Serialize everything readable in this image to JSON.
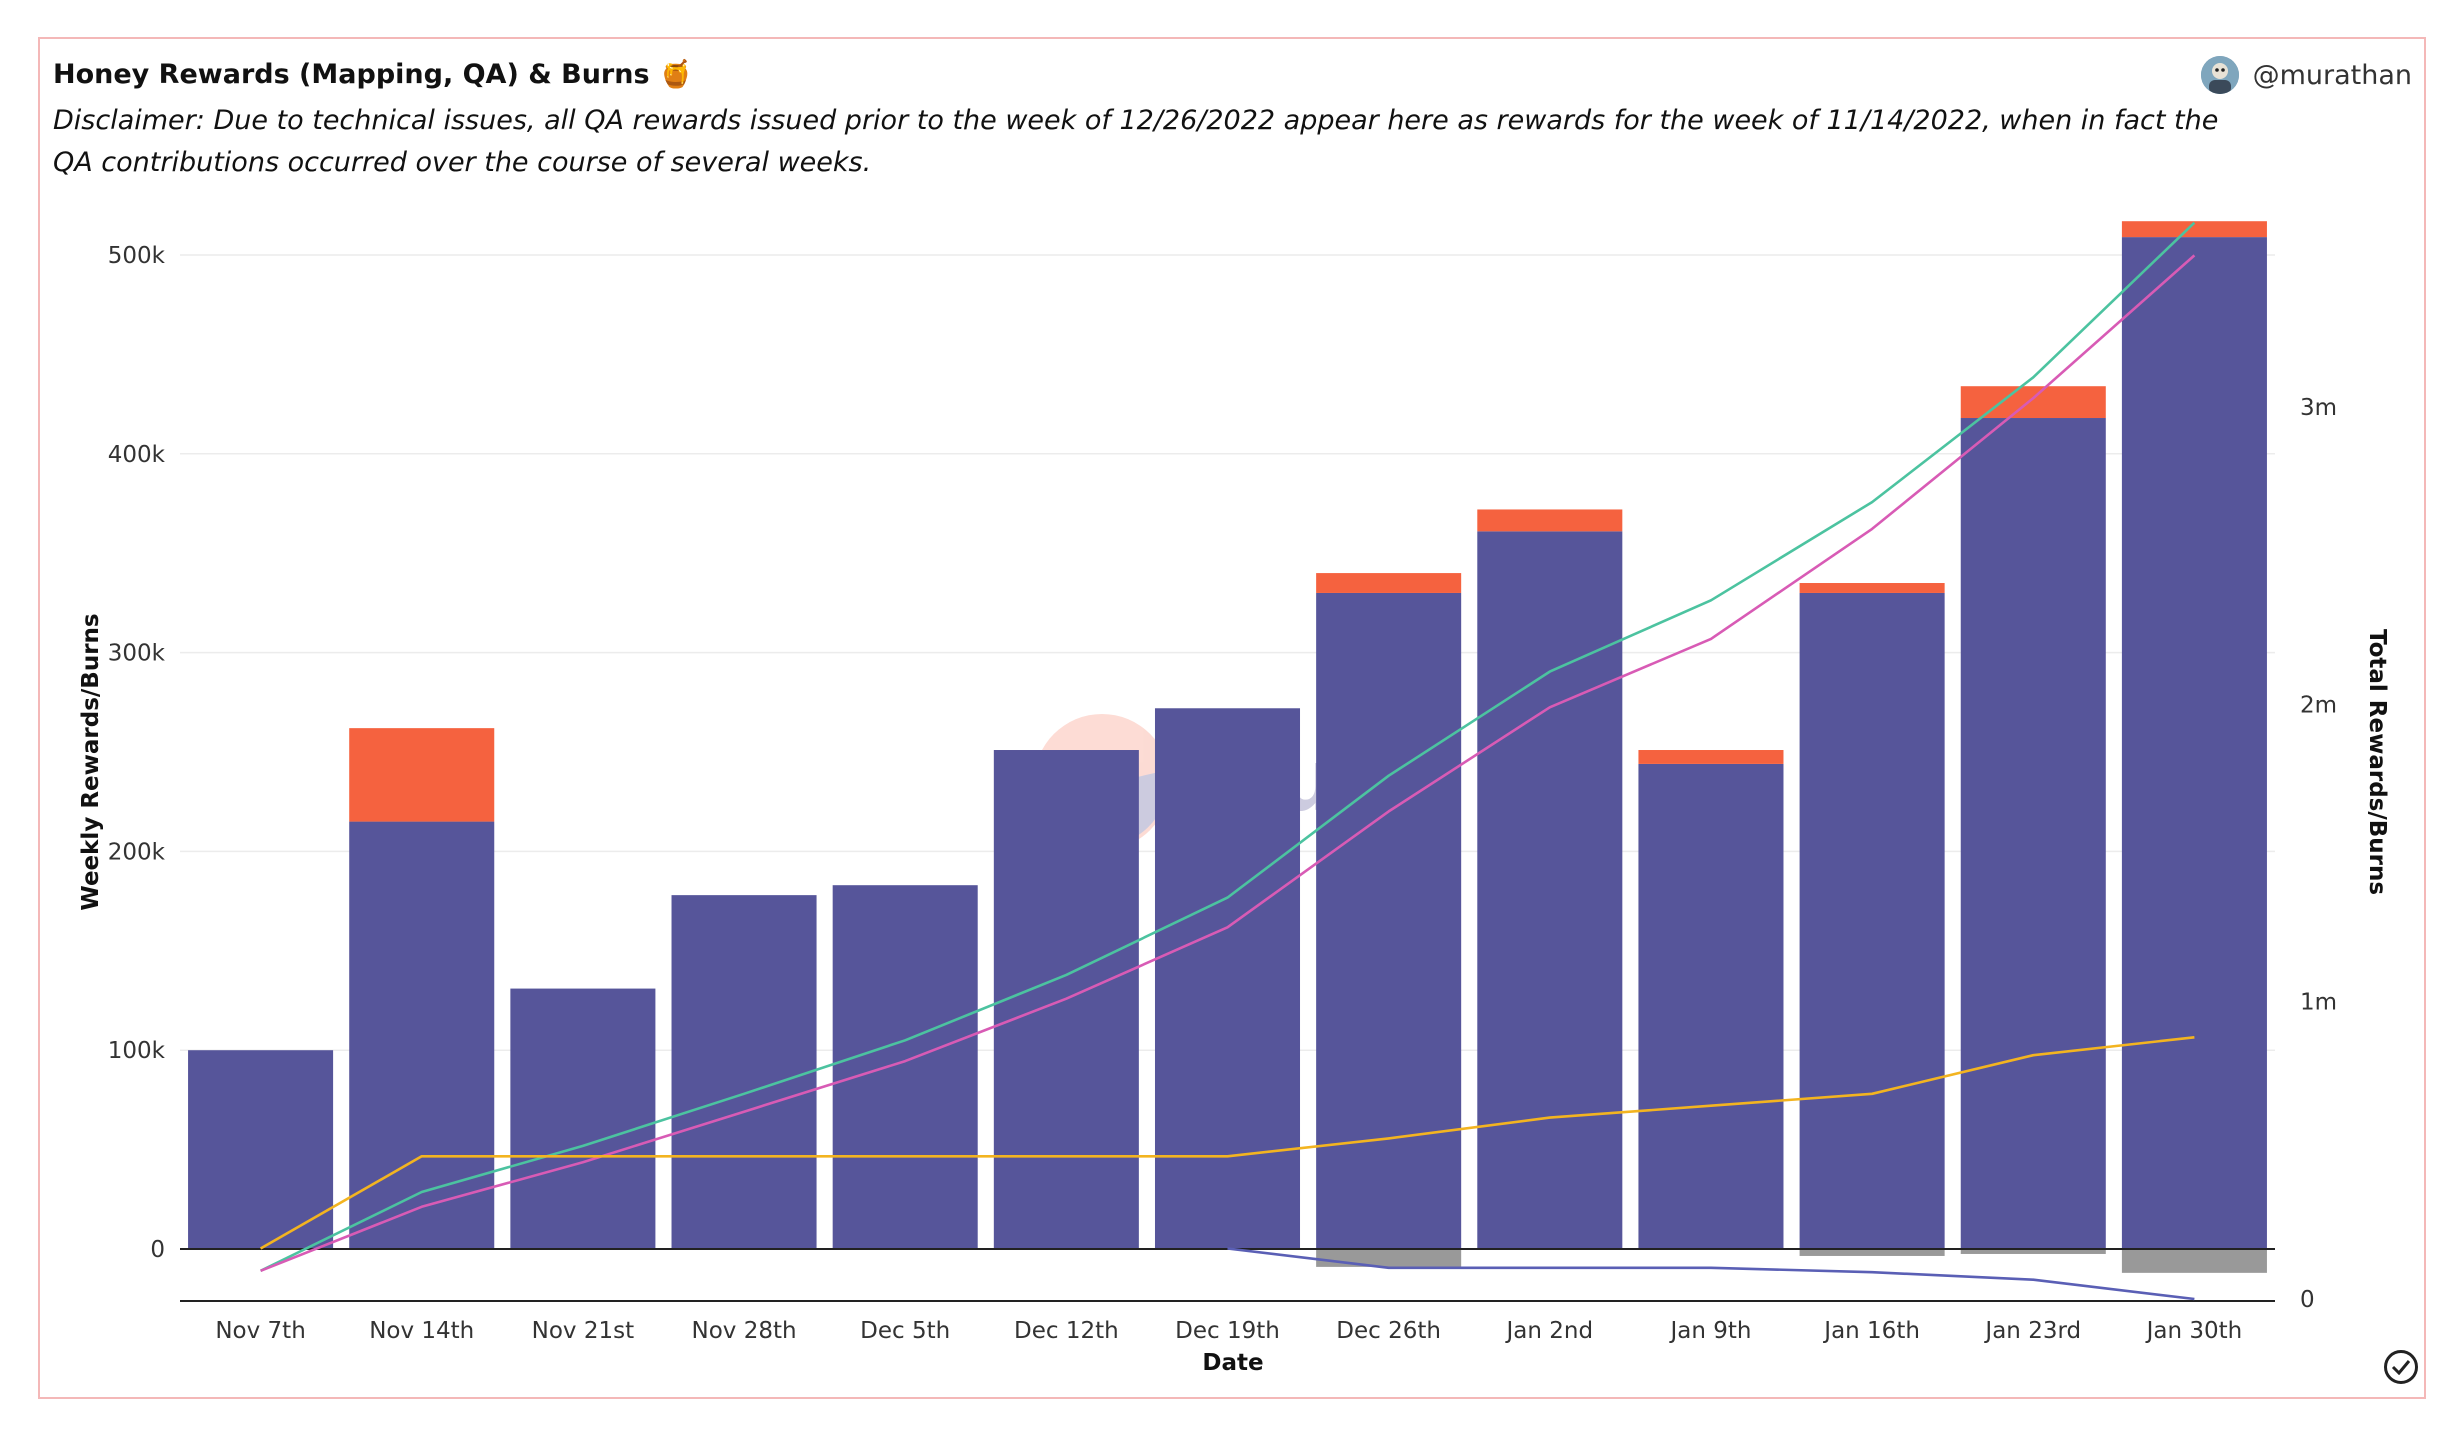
{
  "header": {
    "title": "Honey Rewards (Mapping, QA) & Burns",
    "title_emoji": "🍯",
    "disclaimer": "Disclaimer: Due to technical issues, all QA rewards issued prior to the week of 12/26/2022 appear here as rewards for the week of 11/14/2022, when in fact the QA contributions occurred over the course of several weeks.",
    "author": "@murathan"
  },
  "watermark": "Dune",
  "colors": {
    "mapping": "#56559a",
    "qa": "#f5623f",
    "burn": "#999999",
    "total_teal": "#4cc3a0",
    "total_pink": "#d85bb5",
    "total_orange": "#f3b420",
    "total_blue": "#5a5fb5"
  },
  "chart_data": {
    "type": "bar",
    "categories": [
      "Nov 7th",
      "Nov 14th",
      "Nov 21st",
      "Nov 28th",
      "Dec 5th",
      "Dec 12th",
      "Dec 19th",
      "Dec 26th",
      "Jan 2nd",
      "Jan 9th",
      "Jan 16th",
      "Jan 23rd",
      "Jan 30th"
    ],
    "xlabel": "Date",
    "ylabel": "Weekly Rewards/Burns",
    "y2label": "Total Rewards/Burns",
    "ylim": [
      -27000,
      520000
    ],
    "y2lim": [
      0,
      3660000
    ],
    "yticks": [
      0,
      100000,
      200000,
      300000,
      400000,
      500000
    ],
    "yticklabels": [
      "0",
      "100k",
      "200k",
      "300k",
      "400k",
      "500k"
    ],
    "y2ticks": [
      0,
      1000000,
      2000000,
      3000000
    ],
    "y2ticklabels": [
      "0",
      "1m",
      "2m",
      "3m"
    ],
    "grid": true,
    "stacked_series": [
      {
        "key": "mapping",
        "values": [
          100000,
          215000,
          131000,
          178000,
          183000,
          251000,
          272000,
          330000,
          361000,
          244000,
          330000,
          418000,
          509000
        ]
      },
      {
        "key": "qa",
        "values": [
          0,
          47000,
          0,
          0,
          0,
          0,
          0,
          10000,
          11000,
          7000,
          5000,
          16000,
          8000
        ]
      },
      {
        "key": "burn",
        "values": [
          0,
          0,
          0,
          0,
          0,
          0,
          0,
          -9000,
          0,
          0,
          -3500,
          -2500,
          -12000
        ]
      }
    ],
    "line_series": [
      {
        "key": "total_teal",
        "axis": "right",
        "values": [
          95000,
          360000,
          515000,
          690000,
          870000,
          1090000,
          1350000,
          1760000,
          2110000,
          2350000,
          2680000,
          3100000,
          3620000
        ]
      },
      {
        "key": "total_pink",
        "axis": "right",
        "values": [
          95000,
          310000,
          460000,
          630000,
          800000,
          1010000,
          1250000,
          1640000,
          1990000,
          2220000,
          2590000,
          3030000,
          3510000
        ]
      },
      {
        "key": "total_orange",
        "axis": "right",
        "values": [
          170000,
          480000,
          480000,
          480000,
          480000,
          480000,
          480000,
          540000,
          610000,
          650000,
          690000,
          820000,
          880000
        ]
      },
      {
        "key": "total_blue",
        "axis": "right",
        "values": [
          null,
          null,
          null,
          null,
          null,
          null,
          170000,
          105000,
          105000,
          105000,
          90000,
          65000,
          0
        ]
      }
    ]
  }
}
